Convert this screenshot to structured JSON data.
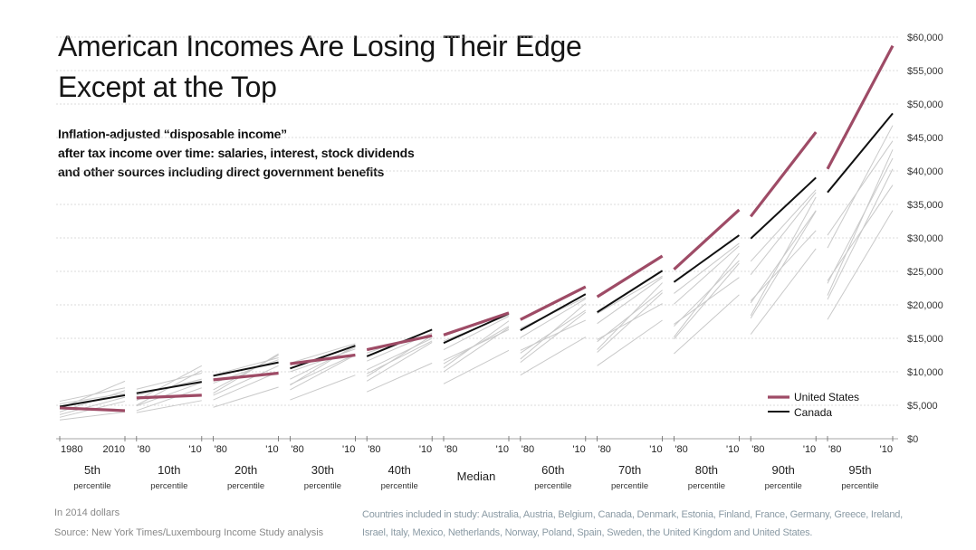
{
  "title": {
    "line1": "American Incomes Are Losing Their Edge",
    "line2": "Except at the Top"
  },
  "subtitle": {
    "line1": "Inflation-adjusted “disposable income”",
    "line2": "after tax income over time: salaries, interest, stock dividends",
    "line3": "and other sources including direct government benefits"
  },
  "colors": {
    "us": "#9e4b66",
    "canada": "#111111",
    "others": "#c9c9c9",
    "grid": "#cfcfcf"
  },
  "chart_data": {
    "type": "line",
    "ylim": [
      0,
      60000
    ],
    "yticks": [
      "$0",
      "$5,000",
      "$10,000",
      "$15,000",
      "$20,000",
      "$25,000",
      "$30,000",
      "$35,000",
      "$40,000",
      "$45,000",
      "$50,000",
      "$55,000",
      "$60,000"
    ],
    "year_range": [
      1980,
      2010
    ],
    "groups": [
      {
        "name": "5th",
        "sub": "percentile",
        "start_label": "1980",
        "end_label": "2010",
        "us": [
          4600,
          4200
        ],
        "canada": [
          4800,
          6500
        ],
        "others": [
          [
            4000,
            7200
          ],
          [
            3200,
            5600
          ],
          [
            5600,
            7600
          ],
          [
            2800,
            4000
          ],
          [
            4500,
            8600
          ],
          [
            3600,
            6200
          ],
          [
            5200,
            6800
          ]
        ]
      },
      {
        "name": "10th",
        "sub": "percentile",
        "start_label": "'80",
        "end_label": "'10",
        "us": [
          6100,
          6500
        ],
        "canada": [
          6800,
          8500
        ],
        "others": [
          [
            5000,
            10200
          ],
          [
            4200,
            7600
          ],
          [
            7400,
            9800
          ],
          [
            3900,
            5700
          ],
          [
            5700,
            10900
          ],
          [
            4900,
            8400
          ],
          [
            6500,
            8900
          ]
        ]
      },
      {
        "name": "20th",
        "sub": "percentile",
        "start_label": "'80",
        "end_label": "'10",
        "us": [
          8800,
          9800
        ],
        "canada": [
          9400,
          11400
        ],
        "others": [
          [
            6800,
            12700
          ],
          [
            5800,
            10000
          ],
          [
            9500,
            12100
          ],
          [
            4700,
            7700
          ],
          [
            7300,
            12500
          ],
          [
            6500,
            10900
          ],
          [
            8300,
            11800
          ]
        ]
      },
      {
        "name": "30th",
        "sub": "percentile",
        "start_label": "'80",
        "end_label": "'10",
        "us": [
          11200,
          12500
        ],
        "canada": [
          10500,
          13900
        ],
        "others": [
          [
            8000,
            14000
          ],
          [
            7300,
            12500
          ],
          [
            11300,
            14200
          ],
          [
            5800,
            9500
          ],
          [
            8900,
            13700
          ],
          [
            8100,
            12600
          ],
          [
            10000,
            13400
          ]
        ]
      },
      {
        "name": "40th",
        "sub": "percentile",
        "start_label": "'80",
        "end_label": "'10",
        "us": [
          13300,
          15400
        ],
        "canada": [
          12300,
          16300
        ],
        "others": [
          [
            9300,
            15400
          ],
          [
            8600,
            14400
          ],
          [
            12800,
            16200
          ],
          [
            7000,
            11300
          ],
          [
            10300,
            15000
          ],
          [
            9700,
            14600
          ],
          [
            11600,
            15800
          ]
        ]
      },
      {
        "name": "Median",
        "sub": "",
        "start_label": "'80",
        "end_label": "'10",
        "us": [
          15500,
          18800
        ],
        "canada": [
          14300,
          18700
        ],
        "others": [
          [
            10600,
            17600
          ],
          [
            10000,
            16600
          ],
          [
            14600,
            18500
          ],
          [
            8200,
            13200
          ],
          [
            11700,
            16300
          ],
          [
            11200,
            16800
          ],
          [
            13300,
            18300
          ]
        ]
      },
      {
        "name": "60th",
        "sub": "percentile",
        "start_label": "'80",
        "end_label": "'10",
        "us": [
          17800,
          22700
        ],
        "canada": [
          16200,
          21600
        ],
        "others": [
          [
            11900,
            20200
          ],
          [
            11400,
            18900
          ],
          [
            16500,
            21100
          ],
          [
            9500,
            15200
          ],
          [
            13200,
            17700
          ],
          [
            12800,
            19200
          ],
          [
            15100,
            20900
          ]
        ]
      },
      {
        "name": "70th",
        "sub": "percentile",
        "start_label": "'80",
        "end_label": "'10",
        "us": [
          21200,
          27300
        ],
        "canada": [
          18900,
          25100
        ],
        "others": [
          [
            13300,
            23300
          ],
          [
            12900,
            21800
          ],
          [
            18700,
            24300
          ],
          [
            10900,
            17700
          ],
          [
            14800,
            20200
          ],
          [
            14500,
            22200
          ],
          [
            17200,
            24100
          ]
        ]
      },
      {
        "name": "80th",
        "sub": "percentile",
        "start_label": "'80",
        "end_label": "'10",
        "us": [
          25300,
          34200
        ],
        "canada": [
          23400,
          30400
        ],
        "others": [
          [
            15200,
            27700
          ],
          [
            14900,
            26200
          ],
          [
            21700,
            29200
          ],
          [
            12700,
            21500
          ],
          [
            17100,
            24100
          ],
          [
            16800,
            26600
          ],
          [
            20100,
            28800
          ]
        ]
      },
      {
        "name": "90th",
        "sub": "percentile",
        "start_label": "'80",
        "end_label": "'10",
        "us": [
          33200,
          45800
        ],
        "canada": [
          29900,
          39000
        ],
        "others": [
          [
            18400,
            36100
          ],
          [
            18000,
            34000
          ],
          [
            26500,
            37200
          ],
          [
            15600,
            28400
          ],
          [
            20600,
            31100
          ],
          [
            20300,
            34100
          ],
          [
            24500,
            36800
          ]
        ]
      },
      {
        "name": "95th",
        "sub": "percentile",
        "start_label": "'80",
        "end_label": "'10",
        "us": [
          40300,
          58700
        ],
        "canada": [
          36800,
          48600
        ],
        "others": [
          [
            21400,
            43200
          ],
          [
            20800,
            40300
          ],
          [
            30400,
            44500
          ],
          [
            17800,
            34100
          ],
          [
            23600,
            37900
          ],
          [
            23200,
            41900
          ],
          [
            28500,
            46800
          ]
        ]
      }
    ],
    "legend": [
      "United States",
      "Canada"
    ],
    "legend_position": "bottom-right"
  },
  "footnotes": {
    "units": "In 2014 dollars",
    "source": "Source: New York Times/Luxembourg Income Study analysis",
    "countries_line1": "Countries included in study: Australia, Austria, Belgium, Canada, Denmark, Estonia, Finland, France, Germany, Greece, Ireland,",
    "countries_line2": "Israel, Italy, Mexico, Netherlands, Norway, Poland, Spain, Sweden, the United Kingdom and United States."
  }
}
